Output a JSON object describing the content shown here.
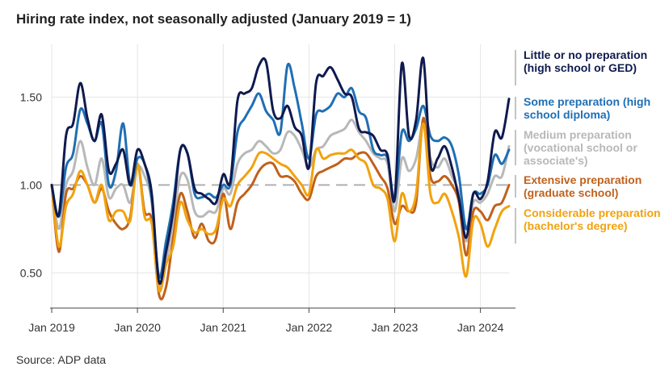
{
  "chart_data": {
    "type": "line",
    "title": "Hiring rate index, not seasonally adjusted (January 2019 = 1)",
    "source": "Source: ADP data",
    "xlabel": "",
    "ylabel": "",
    "x_ticks": [
      "Jan 2019",
      "Jan 2020",
      "Jan 2021",
      "Jan 2022",
      "Jan 2023",
      "Jan 2024"
    ],
    "y_ticks": [
      "0.50",
      "1.00",
      "1.50"
    ],
    "ylim": [
      0.3,
      1.8
    ],
    "grid": true,
    "reference_line": 1.0,
    "legend_placement": "right",
    "x": [
      "2019-01",
      "2019-02",
      "2019-03",
      "2019-04",
      "2019-05",
      "2019-06",
      "2019-07",
      "2019-08",
      "2019-09",
      "2019-10",
      "2019-11",
      "2019-12",
      "2020-01",
      "2020-02",
      "2020-03",
      "2020-04",
      "2020-05",
      "2020-06",
      "2020-07",
      "2020-08",
      "2020-09",
      "2020-10",
      "2020-11",
      "2020-12",
      "2021-01",
      "2021-02",
      "2021-03",
      "2021-04",
      "2021-05",
      "2021-06",
      "2021-07",
      "2021-08",
      "2021-09",
      "2021-10",
      "2021-11",
      "2021-12",
      "2022-01",
      "2022-02",
      "2022-03",
      "2022-04",
      "2022-05",
      "2022-06",
      "2022-07",
      "2022-08",
      "2022-09",
      "2022-10",
      "2022-11",
      "2022-12",
      "2023-01",
      "2023-02",
      "2023-03",
      "2023-04",
      "2023-05",
      "2023-06",
      "2023-07",
      "2023-08",
      "2023-09",
      "2023-10",
      "2023-11",
      "2023-12",
      "2024-01",
      "2024-02",
      "2024-03",
      "2024-04",
      "2024-05"
    ],
    "series": [
      {
        "name": "Little or no preparation (high school or GED)",
        "color": "#0f1a4f",
        "values": [
          1.0,
          0.83,
          1.28,
          1.35,
          1.58,
          1.38,
          1.25,
          1.4,
          1.08,
          1.12,
          1.2,
          1.0,
          1.2,
          1.12,
          0.95,
          0.45,
          0.62,
          0.85,
          1.2,
          1.18,
          0.98,
          0.95,
          0.92,
          0.9,
          1.06,
          1.02,
          1.48,
          1.52,
          1.55,
          1.68,
          1.7,
          1.42,
          1.38,
          1.45,
          1.33,
          1.28,
          1.1,
          1.58,
          1.62,
          1.67,
          1.6,
          1.52,
          1.5,
          1.32,
          1.3,
          1.28,
          1.2,
          1.17,
          0.92,
          1.69,
          1.28,
          1.37,
          1.72,
          1.12,
          1.15,
          1.22,
          1.1,
          0.92,
          0.7,
          0.95,
          0.92,
          1.02,
          1.3,
          1.27,
          1.49
        ]
      },
      {
        "name": "Some preparation (high school diploma)",
        "color": "#1f6fb4",
        "values": [
          1.0,
          0.82,
          1.1,
          1.18,
          1.43,
          1.35,
          1.25,
          1.35,
          1.0,
          1.08,
          1.35,
          1.0,
          1.15,
          1.12,
          0.92,
          0.48,
          0.68,
          0.9,
          1.2,
          1.18,
          0.95,
          0.93,
          0.95,
          0.93,
          1.0,
          1.0,
          1.3,
          1.38,
          1.45,
          1.52,
          1.42,
          1.37,
          1.3,
          1.68,
          1.55,
          1.35,
          1.15,
          1.4,
          1.42,
          1.45,
          1.52,
          1.5,
          1.55,
          1.42,
          1.38,
          1.2,
          1.17,
          1.15,
          0.92,
          1.3,
          1.25,
          1.32,
          1.45,
          1.28,
          1.25,
          1.27,
          1.22,
          1.05,
          0.75,
          0.95,
          0.95,
          1.0,
          1.17,
          1.12,
          1.2
        ]
      },
      {
        "name": "Medium preparation (vocational school or associate's)",
        "color": "#b8b8b8",
        "values": [
          1.0,
          0.75,
          1.0,
          1.08,
          1.25,
          1.1,
          1.0,
          1.15,
          0.93,
          0.98,
          1.0,
          0.9,
          1.1,
          1.05,
          0.9,
          0.43,
          0.55,
          0.8,
          1.05,
          1.03,
          0.85,
          0.82,
          0.85,
          0.85,
          0.98,
          0.95,
          1.12,
          1.18,
          1.2,
          1.25,
          1.22,
          1.18,
          1.2,
          1.3,
          1.28,
          1.2,
          1.1,
          1.2,
          1.22,
          1.28,
          1.3,
          1.32,
          1.37,
          1.3,
          1.25,
          1.18,
          1.15,
          1.12,
          0.85,
          1.15,
          1.08,
          1.15,
          1.35,
          1.15,
          1.1,
          1.15,
          1.05,
          0.95,
          0.68,
          0.9,
          0.9,
          0.95,
          1.05,
          1.05,
          1.22
        ]
      },
      {
        "name": "Extensive preparation (graduate school)",
        "color": "#c0611c",
        "values": [
          1.0,
          0.62,
          0.95,
          0.98,
          1.05,
          1.0,
          0.9,
          0.98,
          0.85,
          0.78,
          0.75,
          0.82,
          1.12,
          0.85,
          0.8,
          0.38,
          0.42,
          0.7,
          0.95,
          0.85,
          0.7,
          0.78,
          0.68,
          0.7,
          0.95,
          0.75,
          0.9,
          0.95,
          1.0,
          1.08,
          1.12,
          1.12,
          1.05,
          1.05,
          1.02,
          0.95,
          0.92,
          1.05,
          1.08,
          1.1,
          1.12,
          1.15,
          1.15,
          1.18,
          1.18,
          1.12,
          1.05,
          0.98,
          0.78,
          0.88,
          0.85,
          0.9,
          1.38,
          1.05,
          1.02,
          1.05,
          1.0,
          0.9,
          0.6,
          0.85,
          0.85,
          0.8,
          0.88,
          0.9,
          1.0
        ]
      },
      {
        "name": "Considerable preparation (bachelor's degree)",
        "color": "#f2a20d",
        "values": [
          1.0,
          0.65,
          0.88,
          0.95,
          1.08,
          1.0,
          0.9,
          1.0,
          0.8,
          0.85,
          0.85,
          0.8,
          1.12,
          0.82,
          0.78,
          0.4,
          0.55,
          0.65,
          0.9,
          0.8,
          0.73,
          0.75,
          0.72,
          0.75,
          0.92,
          0.88,
          1.0,
          1.05,
          1.1,
          1.18,
          1.18,
          1.15,
          1.12,
          1.1,
          1.05,
          1.0,
          0.95,
          1.2,
          1.15,
          1.17,
          1.18,
          1.18,
          1.2,
          1.15,
          1.12,
          1.0,
          0.98,
          0.92,
          0.68,
          0.95,
          0.85,
          0.95,
          1.35,
          0.95,
          0.9,
          0.95,
          0.85,
          0.7,
          0.48,
          0.8,
          0.78,
          0.65,
          0.75,
          0.85,
          0.88
        ]
      }
    ]
  }
}
